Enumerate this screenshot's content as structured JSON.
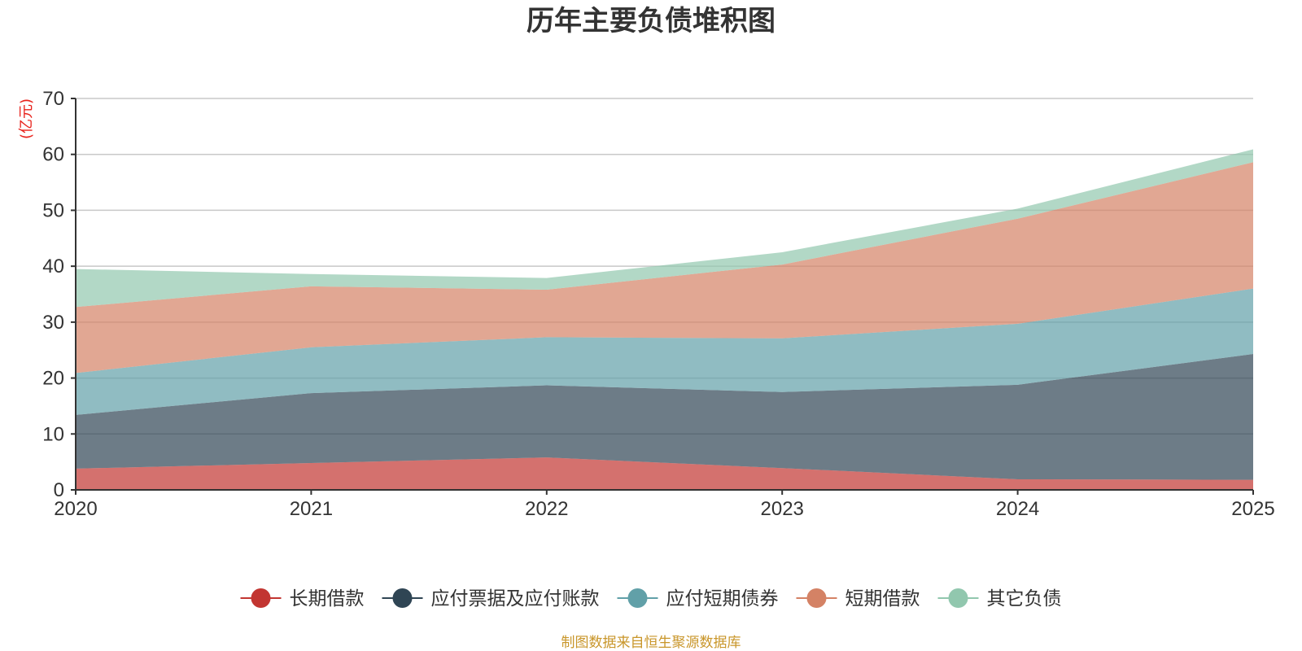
{
  "chart_data": {
    "type": "area",
    "stacked": true,
    "title": "历年主要负债堆积图",
    "ylabel": "(亿元)",
    "xlabel": "",
    "categories": [
      "2020",
      "2021",
      "2022",
      "2023",
      "2024",
      "2025"
    ],
    "ylim": [
      0,
      70
    ],
    "yticks": [
      0,
      10,
      20,
      30,
      40,
      50,
      60,
      70
    ],
    "grid": true,
    "legend_position": "bottom",
    "series": [
      {
        "name": "长期借款",
        "color": "#c23531",
        "values": [
          3.8,
          4.8,
          5.8,
          3.9,
          1.9,
          1.8
        ]
      },
      {
        "name": "应付票据及应付账款",
        "color": "#2f4554",
        "values": [
          9.6,
          12.5,
          12.9,
          13.6,
          16.9,
          22.5
        ]
      },
      {
        "name": "应付短期债券",
        "color": "#61a0a8",
        "values": [
          7.5,
          8.2,
          8.6,
          9.6,
          10.9,
          11.7
        ]
      },
      {
        "name": "短期借款",
        "color": "#d48265",
        "values": [
          11.8,
          10.9,
          8.5,
          13.2,
          18.8,
          22.6
        ]
      },
      {
        "name": "其它负债",
        "color": "#91c7ae",
        "values": [
          6.8,
          2.2,
          2.1,
          2.2,
          1.8,
          2.3
        ]
      }
    ],
    "source": "制图数据来自恒生聚源数据库"
  },
  "colors": {
    "title": "#333333",
    "ylabel": "#e8221b",
    "source": "#c9962a",
    "grid": "#c8c8c8",
    "axis": "#333333"
  }
}
